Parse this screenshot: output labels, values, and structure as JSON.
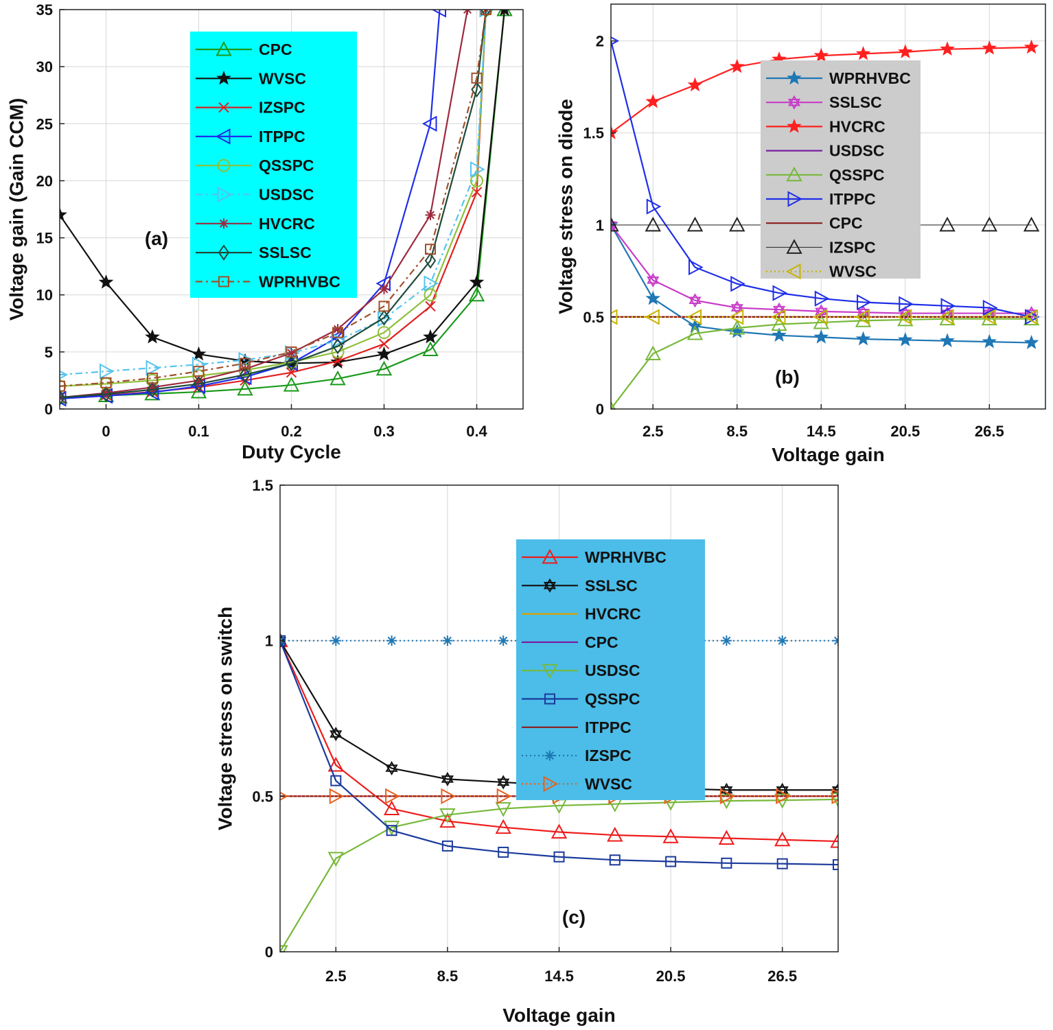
{
  "chart_data": [
    {
      "type": "line",
      "panel_label": "(a)",
      "xlabel": "Duty Cycle",
      "ylabel": "Voltage gain (Gain CCM)",
      "xlim": [
        -0.05,
        0.45
      ],
      "ylim": [
        0,
        35
      ],
      "xticks": [
        0,
        0.1,
        0.2,
        0.3,
        0.4
      ],
      "xtick_labels": [
        "0",
        "0.1",
        "0.2",
        "0.3",
        "0.4"
      ],
      "yticks": [
        0,
        5,
        10,
        15,
        20,
        25,
        30,
        35
      ],
      "ytick_labels": [
        "0",
        "5",
        "10",
        "15",
        "20",
        "25",
        "30",
        "35"
      ],
      "grid": true,
      "legend_bg": "#00ffff",
      "legend_position": "top-center",
      "series": [
        {
          "name": "CPC",
          "color": "#1a9a1a",
          "marker": "triangle-up",
          "dash": "solid",
          "x": [
            -0.05,
            0,
            0.05,
            0.1,
            0.15,
            0.2,
            0.25,
            0.3,
            0.35,
            0.4,
            0.43
          ],
          "y": [
            1.05,
            1.17,
            1.33,
            1.5,
            1.75,
            2.1,
            2.65,
            3.5,
            5.2,
            10,
            35
          ]
        },
        {
          "name": "WVSC",
          "color": "#111111",
          "marker": "star",
          "dash": "solid",
          "x": [
            -0.05,
            0,
            0.05,
            0.1,
            0.15,
            0.2,
            0.25,
            0.3,
            0.35,
            0.4,
            0.43
          ],
          "y": [
            17,
            11.1,
            6.3,
            4.8,
            4.2,
            4.0,
            4.1,
            4.8,
            6.3,
            11.1,
            35
          ]
        },
        {
          "name": "IZSPC",
          "color": "#e02020",
          "marker": "x",
          "dash": "solid",
          "x": [
            -0.05,
            0,
            0.05,
            0.1,
            0.15,
            0.2,
            0.25,
            0.3,
            0.35,
            0.4,
            0.41
          ],
          "y": [
            1.0,
            1.2,
            1.5,
            1.9,
            2.5,
            3.2,
            4.2,
            5.7,
            9.0,
            19,
            35
          ]
        },
        {
          "name": "ITPPC",
          "color": "#1e2ee8",
          "marker": "triangle-left",
          "dash": "solid",
          "x": [
            -0.05,
            0,
            0.05,
            0.1,
            0.15,
            0.2,
            0.25,
            0.3,
            0.35,
            0.36
          ],
          "y": [
            0.9,
            1.15,
            1.45,
            2.0,
            2.8,
            4.0,
            6.3,
            11.0,
            25,
            35
          ]
        },
        {
          "name": "QSSPC",
          "color": "#8fbf3a",
          "marker": "circle",
          "dash": "solid",
          "x": [
            -0.05,
            0,
            0.05,
            0.1,
            0.15,
            0.2,
            0.25,
            0.3,
            0.35,
            0.4,
            0.41
          ],
          "y": [
            2.0,
            2.2,
            2.5,
            2.9,
            3.4,
            4.1,
            5.0,
            6.7,
            10.0,
            20,
            35
          ]
        },
        {
          "name": "USDSC",
          "color": "#55c3ee",
          "marker": "triangle-right",
          "dash": "dashdot",
          "x": [
            -0.05,
            0,
            0.05,
            0.1,
            0.15,
            0.2,
            0.25,
            0.3,
            0.35,
            0.4,
            0.41
          ],
          "y": [
            3.0,
            3.3,
            3.6,
            3.9,
            4.3,
            4.9,
            6.0,
            7.9,
            11.0,
            21,
            35
          ]
        },
        {
          "name": "HVCRC",
          "color": "#9c2a3e",
          "marker": "asterisk",
          "dash": "solid",
          "x": [
            -0.05,
            0,
            0.05,
            0.1,
            0.15,
            0.2,
            0.25,
            0.3,
            0.35,
            0.39
          ],
          "y": [
            1.0,
            1.4,
            1.9,
            2.5,
            3.5,
            4.9,
            7.0,
            10.5,
            17.0,
            35
          ]
        },
        {
          "name": "SSLSC",
          "color": "#1d4a3a",
          "marker": "diamond",
          "dash": "solid",
          "x": [
            -0.05,
            0,
            0.05,
            0.1,
            0.15,
            0.2,
            0.25,
            0.3,
            0.35,
            0.4,
            0.41
          ],
          "y": [
            1.0,
            1.3,
            1.7,
            2.2,
            3.0,
            4.0,
            5.5,
            8.0,
            13.0,
            28,
            35
          ]
        },
        {
          "name": "WPRHVBC",
          "color": "#a0502a",
          "marker": "square",
          "dash": "dashdot",
          "x": [
            -0.05,
            0,
            0.05,
            0.1,
            0.15,
            0.2,
            0.25,
            0.3,
            0.35,
            0.4,
            0.41
          ],
          "y": [
            2.0,
            2.3,
            2.7,
            3.3,
            4.0,
            5.0,
            6.7,
            9.0,
            14.0,
            29,
            35
          ]
        }
      ]
    },
    {
      "type": "line",
      "panel_label": "(b)",
      "xlabel": "Voltage gain",
      "ylabel": "Voltage stress on diode",
      "xlim": [
        -0.5,
        30.5
      ],
      "ylim": [
        0,
        2.2
      ],
      "xticks": [
        2.5,
        8.5,
        14.5,
        20.5,
        26.5
      ],
      "xtick_labels": [
        "2.5",
        "8.5",
        "14.5",
        "20.5",
        "26.5"
      ],
      "yticks": [
        0,
        0.5,
        1,
        1.5,
        2
      ],
      "ytick_labels": [
        "0",
        "0.5",
        "1",
        "1.5",
        "2"
      ],
      "grid": true,
      "legend_bg": "#cccccc",
      "legend_position": "top-center",
      "series": [
        {
          "name": "WPRHVBC",
          "color": "#1f77b4",
          "marker": "star",
          "dash": "solid",
          "x": [
            -0.5,
            2.5,
            5.5,
            8.5,
            11.5,
            14.5,
            17.5,
            20.5,
            23.5,
            26.5,
            29.5
          ],
          "y": [
            1.0,
            0.6,
            0.45,
            0.42,
            0.4,
            0.39,
            0.38,
            0.375,
            0.37,
            0.365,
            0.36
          ]
        },
        {
          "name": "SSLSC",
          "color": "#c83cc8",
          "marker": "hexagram",
          "dash": "solid",
          "x": [
            -0.5,
            2.5,
            5.5,
            8.5,
            11.5,
            14.5,
            17.5,
            20.5,
            23.5,
            26.5,
            29.5
          ],
          "y": [
            1.0,
            0.7,
            0.59,
            0.55,
            0.54,
            0.53,
            0.525,
            0.52,
            0.52,
            0.52,
            0.52
          ]
        },
        {
          "name": "HVCRC",
          "color": "#ff2020",
          "marker": "star",
          "dash": "solid",
          "x": [
            -0.5,
            2.5,
            5.5,
            8.5,
            11.5,
            14.5,
            17.5,
            20.5,
            23.5,
            26.5,
            29.5
          ],
          "y": [
            1.5,
            1.67,
            1.76,
            1.86,
            1.9,
            1.92,
            1.93,
            1.94,
            1.955,
            1.96,
            1.965
          ]
        },
        {
          "name": "USDSC",
          "color": "#7a1fa2",
          "marker": "none",
          "dash": "solid",
          "x": [
            -0.5,
            29.5
          ],
          "y": [
            0.5,
            0.5
          ]
        },
        {
          "name": "QSSPC",
          "color": "#77b83a",
          "marker": "triangle-up",
          "dash": "solid",
          "x": [
            -0.5,
            2.5,
            5.5,
            8.5,
            11.5,
            14.5,
            17.5,
            20.5,
            23.5,
            26.5,
            29.5
          ],
          "y": [
            0.0,
            0.3,
            0.41,
            0.44,
            0.46,
            0.47,
            0.48,
            0.485,
            0.49,
            0.49,
            0.49
          ]
        },
        {
          "name": "ITPPC",
          "color": "#1e2ee8",
          "marker": "triangle-right",
          "dash": "solid",
          "x": [
            -0.5,
            2.5,
            5.5,
            8.5,
            11.5,
            14.5,
            17.5,
            20.5,
            23.5,
            26.5,
            29.5
          ],
          "y": [
            2.0,
            1.1,
            0.77,
            0.68,
            0.63,
            0.6,
            0.58,
            0.57,
            0.56,
            0.55,
            0.5
          ]
        },
        {
          "name": "CPC",
          "color": "#8b1a1a",
          "marker": "none",
          "dash": "solid",
          "x": [
            -0.5,
            29.5
          ],
          "y": [
            0.5,
            0.5
          ]
        },
        {
          "name": "IZSPC",
          "color": "#222222",
          "marker": "triangle-up",
          "dash": "solid",
          "line_width": 1,
          "x": [
            -0.5,
            2.5,
            5.5,
            8.5,
            11.5,
            14.5,
            17.5,
            20.5,
            23.5,
            26.5,
            29.5
          ],
          "y": [
            1,
            1,
            1,
            1,
            1,
            1,
            1,
            1,
            1,
            1,
            1
          ]
        },
        {
          "name": "WVSC",
          "color": "#c8b400",
          "marker": "triangle-left",
          "dash": "dotted",
          "x": [
            -0.5,
            2.5,
            5.5,
            8.5,
            11.5,
            14.5,
            17.5,
            20.5,
            23.5,
            26.5,
            29.5
          ],
          "y": [
            0.5,
            0.5,
            0.5,
            0.5,
            0.5,
            0.5,
            0.5,
            0.5,
            0.5,
            0.5,
            0.5
          ]
        }
      ]
    },
    {
      "type": "line",
      "panel_label": "(c)",
      "xlabel": "Voltage gain",
      "ylabel": "Voltage stress on switch",
      "xlim": [
        -0.5,
        29.5
      ],
      "ylim": [
        0,
        1.5
      ],
      "xticks": [
        2.5,
        8.5,
        14.5,
        20.5,
        26.5
      ],
      "xtick_labels": [
        "2.5",
        "8.5",
        "14.5",
        "20.5",
        "26.5"
      ],
      "yticks": [
        0,
        0.5,
        1,
        1.5
      ],
      "ytick_labels": [
        "0",
        "0.5",
        "1",
        "1.5"
      ],
      "grid": true,
      "legend_bg": "#4bbde8",
      "legend_position": "center",
      "series": [
        {
          "name": "WPRHVBC",
          "color": "#ee1c1c",
          "marker": "triangle-up",
          "dash": "solid",
          "x": [
            -0.5,
            2.5,
            5.5,
            8.5,
            11.5,
            14.5,
            17.5,
            20.5,
            23.5,
            26.5,
            29.5
          ],
          "y": [
            1.0,
            0.6,
            0.46,
            0.42,
            0.4,
            0.385,
            0.375,
            0.37,
            0.365,
            0.36,
            0.355
          ]
        },
        {
          "name": "SSLSC",
          "color": "#111111",
          "marker": "hexagram",
          "dash": "solid",
          "x": [
            -0.5,
            2.5,
            5.5,
            8.5,
            11.5,
            14.5,
            17.5,
            20.5,
            23.5,
            26.5,
            29.5
          ],
          "y": [
            1.0,
            0.7,
            0.59,
            0.555,
            0.545,
            0.535,
            0.53,
            0.525,
            0.52,
            0.52,
            0.52
          ]
        },
        {
          "name": "HVCRC",
          "color": "#e0a000",
          "marker": "none",
          "dash": "solid",
          "x": [
            -0.5,
            29.5
          ],
          "y": [
            0.5,
            0.5
          ]
        },
        {
          "name": "CPC",
          "color": "#7a1fa2",
          "marker": "none",
          "dash": "solid",
          "x": [
            -0.5,
            29.5
          ],
          "y": [
            0.5,
            0.5
          ]
        },
        {
          "name": "USDSC",
          "color": "#77b83a",
          "marker": "triangle-down",
          "dash": "solid",
          "x": [
            -0.5,
            2.5,
            5.5,
            8.5,
            11.5,
            14.5,
            17.5,
            20.5,
            23.5,
            26.5,
            29.5
          ],
          "y": [
            0.0,
            0.3,
            0.4,
            0.44,
            0.46,
            0.47,
            0.475,
            0.48,
            0.485,
            0.487,
            0.49
          ]
        },
        {
          "name": "QSSPC",
          "color": "#1b3a9c",
          "marker": "square",
          "dash": "solid",
          "x": [
            -0.5,
            2.5,
            5.5,
            8.5,
            11.5,
            14.5,
            17.5,
            20.5,
            23.5,
            26.5,
            29.5
          ],
          "y": [
            1.0,
            0.55,
            0.39,
            0.34,
            0.32,
            0.305,
            0.295,
            0.29,
            0.285,
            0.283,
            0.28
          ]
        },
        {
          "name": "ITPPC",
          "color": "#8b1a1a",
          "marker": "none",
          "dash": "solid",
          "x": [
            -0.5,
            29.5
          ],
          "y": [
            0.5,
            0.5
          ]
        },
        {
          "name": "IZSPC",
          "color": "#1f77b4",
          "marker": "asterisk",
          "dash": "dotted",
          "x": [
            -0.5,
            2.5,
            5.5,
            8.5,
            11.5,
            14.5,
            17.5,
            20.5,
            23.5,
            26.5,
            29.5
          ],
          "y": [
            1,
            1,
            1,
            1,
            1,
            1,
            1,
            1,
            1,
            1,
            1
          ]
        },
        {
          "name": "WVSC",
          "color": "#e8601c",
          "marker": "triangle-right",
          "dash": "dotted",
          "x": [
            -0.5,
            2.5,
            5.5,
            8.5,
            11.5,
            14.5,
            17.5,
            20.5,
            23.5,
            26.5,
            29.5
          ],
          "y": [
            0.5,
            0.5,
            0.5,
            0.5,
            0.5,
            0.5,
            0.5,
            0.5,
            0.5,
            0.5,
            0.5
          ]
        }
      ]
    }
  ]
}
